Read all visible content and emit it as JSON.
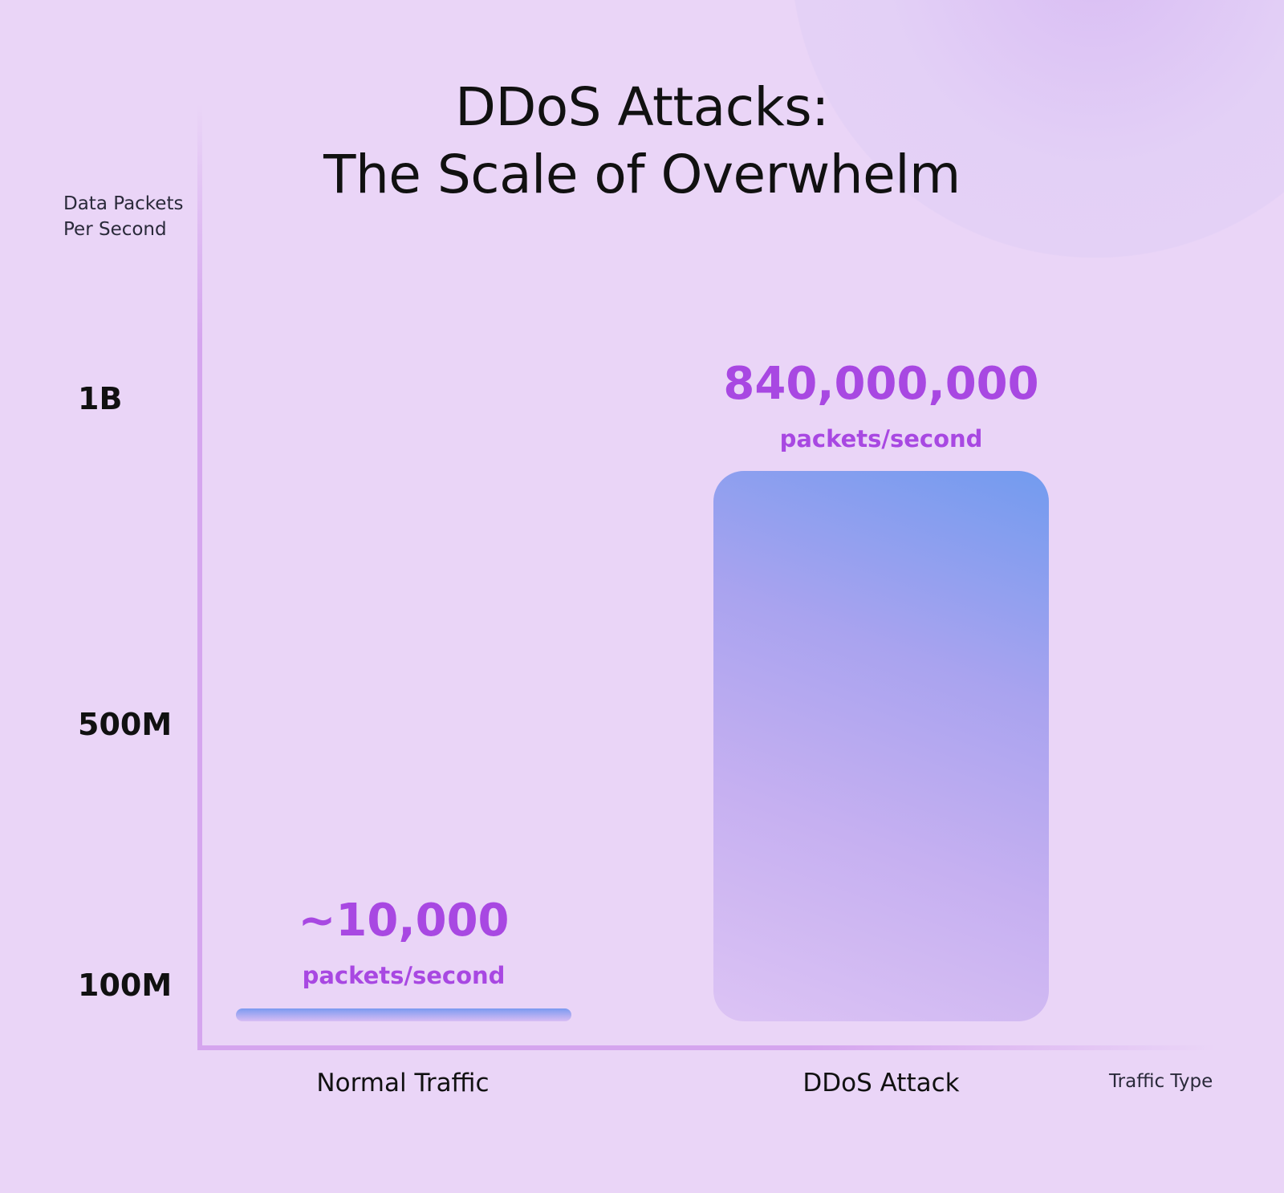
{
  "chart_data": {
    "type": "bar",
    "title": "DDoS Attacks:",
    "subtitle": "The Scale of Overwhelm",
    "ylabel": "Data Packets Per Second",
    "ylabel_lines": [
      "Data Packets",
      "Per Second"
    ],
    "xlabel": "Traffic Type",
    "categories": [
      "Normal Traffic",
      "DDoS Attack"
    ],
    "values": [
      10000,
      840000000
    ],
    "data_labels": [
      {
        "value": "~10,000",
        "unit": "packets/second"
      },
      {
        "value": "840,000,000",
        "unit": "packets/second"
      }
    ],
    "yticks": [
      {
        "label": "100M",
        "value": 100000000
      },
      {
        "label": "500M",
        "value": 500000000
      },
      {
        "label": "1B",
        "value": 1000000000
      }
    ],
    "grid": false,
    "colors": {
      "background": "#ead5f7",
      "label": "#a848e2",
      "bar_top": "#729bef",
      "bar_bottom": "#dcc3f4",
      "axis": "#d5a5ee"
    }
  }
}
